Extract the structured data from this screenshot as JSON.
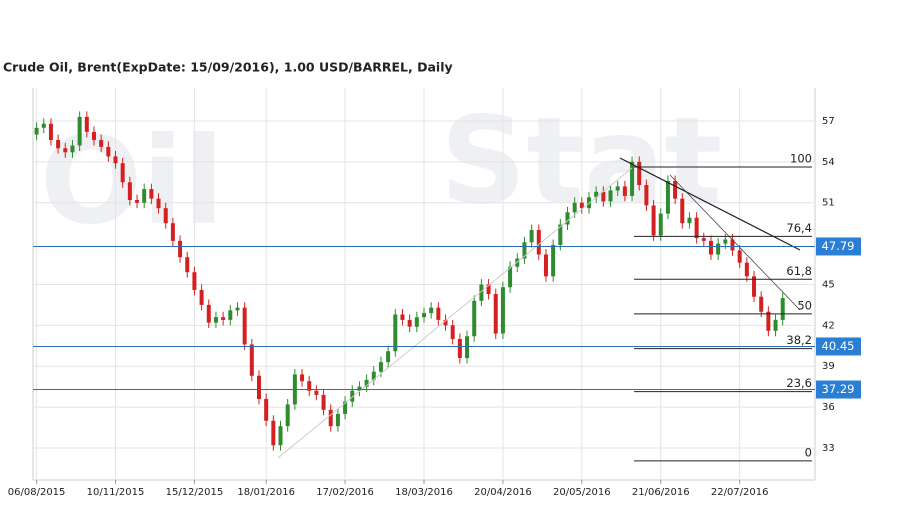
{
  "chart_data": {
    "type": "candlestick",
    "title": "Crude Oil, Brent(ExpDate: 15/09/2016), 1.00 USD/BARREL, Daily",
    "watermark": [
      "Oil",
      "Stat"
    ],
    "up_color": "#2e8b2e",
    "down_color": "#d42020",
    "grid": true,
    "ylim": [
      30.65,
      59.42
    ],
    "yticks": [
      33,
      36,
      39,
      42,
      45,
      51,
      54,
      57
    ],
    "xlim": [
      -0.5,
      108.5
    ],
    "xticks": [
      {
        "value": 0,
        "label": "06/08/2015"
      },
      {
        "value": 11,
        "label": "10/11/2015"
      },
      {
        "value": 22,
        "label": "15/12/2015"
      },
      {
        "value": 32,
        "label": "18/01/2016"
      },
      {
        "value": 43,
        "label": "17/02/2016"
      },
      {
        "value": 54,
        "label": "18/03/2016"
      },
      {
        "value": 65,
        "label": "20/04/2016"
      },
      {
        "value": 76,
        "label": "20/05/2016"
      },
      {
        "value": 87,
        "label": "21/06/2016"
      },
      {
        "value": 98,
        "label": "22/07/2016"
      }
    ],
    "hlines": [
      47.79,
      40.45,
      37.29
    ],
    "fib_levels": [
      {
        "value": 53.62,
        "label": "100"
      },
      {
        "value": 48.53,
        "label": "76,4"
      },
      {
        "value": 45.38,
        "label": "61,8"
      },
      {
        "value": 42.84,
        "label": "50"
      },
      {
        "value": 40.29,
        "label": "38,2"
      },
      {
        "value": 37.14,
        "label": "23,6"
      },
      {
        "value": 32.05,
        "label": "0"
      }
    ],
    "open": [
      56.0,
      56.5,
      56.8,
      55.6,
      55.0,
      54.7,
      55.2,
      57.3,
      56.2,
      55.6,
      55.1,
      54.4,
      53.9,
      52.5,
      51.2,
      51.0,
      52.0,
      51.3,
      50.6,
      49.5,
      48.2,
      47.0,
      45.9,
      44.6,
      43.5,
      42.2,
      42.6,
      42.4,
      43.1,
      43.3,
      40.6,
      38.3,
      36.6,
      35.0,
      33.2,
      34.6,
      36.2,
      38.4,
      37.9,
      37.2,
      36.9,
      35.8,
      34.6,
      35.5,
      36.4,
      37.2,
      37.5,
      38.0,
      38.6,
      39.3,
      40.1,
      42.8,
      42.4,
      41.9,
      42.6,
      42.9,
      43.3,
      42.4,
      42.0,
      41.0,
      39.6,
      41.2,
      43.8,
      45.0,
      44.3,
      41.4,
      44.8,
      46.3,
      46.9,
      48.1,
      49.0,
      47.2,
      45.6,
      47.9,
      49.4,
      50.3,
      51.0,
      50.6,
      51.4,
      51.8,
      51.1,
      51.9,
      52.2,
      51.5,
      54.0,
      52.3,
      50.8,
      48.6,
      50.2,
      52.6,
      51.3,
      49.5,
      49.9,
      48.4,
      48.2,
      47.2,
      48.0,
      48.3,
      47.5,
      46.6,
      45.6,
      44.1,
      43.0,
      41.6,
      42.4
    ],
    "high": [
      56.9,
      57.2,
      57.2,
      56.0,
      55.4,
      55.6,
      57.7,
      57.7,
      56.6,
      56.0,
      55.5,
      54.8,
      54.3,
      52.9,
      51.6,
      52.4,
      52.4,
      51.7,
      51.0,
      49.9,
      48.6,
      47.4,
      46.3,
      45.0,
      43.9,
      43.0,
      43.0,
      43.5,
      43.7,
      43.7,
      41.0,
      38.7,
      37.0,
      35.4,
      35.0,
      36.6,
      38.8,
      38.8,
      38.3,
      37.6,
      37.3,
      36.2,
      35.9,
      36.8,
      37.6,
      37.9,
      38.4,
      39.0,
      39.7,
      40.5,
      43.2,
      43.2,
      42.8,
      43.0,
      43.3,
      43.7,
      43.7,
      42.8,
      42.4,
      41.4,
      41.6,
      44.2,
      45.4,
      45.4,
      44.7,
      45.2,
      46.7,
      47.3,
      48.5,
      49.4,
      49.4,
      47.6,
      48.3,
      49.8,
      50.7,
      51.4,
      51.4,
      51.8,
      52.2,
      52.2,
      52.3,
      52.6,
      52.6,
      54.4,
      54.4,
      52.7,
      51.2,
      50.6,
      53.0,
      53.0,
      51.7,
      50.3,
      50.3,
      48.8,
      48.6,
      48.4,
      48.7,
      48.7,
      47.9,
      47.0,
      46.0,
      44.5,
      43.4,
      42.8,
      44.4
    ],
    "low": [
      55.6,
      56.1,
      55.2,
      54.6,
      54.3,
      54.3,
      54.8,
      55.8,
      55.2,
      54.7,
      54.0,
      53.5,
      52.1,
      50.8,
      50.6,
      50.6,
      50.9,
      50.2,
      49.1,
      47.8,
      46.6,
      45.5,
      44.2,
      43.1,
      41.8,
      41.8,
      42.0,
      42.0,
      42.7,
      40.2,
      37.9,
      36.2,
      34.6,
      32.8,
      32.8,
      34.2,
      35.8,
      37.5,
      36.8,
      36.5,
      35.4,
      34.2,
      34.2,
      35.1,
      36.0,
      36.8,
      37.1,
      37.6,
      38.2,
      38.9,
      39.7,
      42.0,
      41.5,
      41.5,
      42.2,
      42.5,
      42.0,
      41.6,
      40.6,
      39.2,
      39.2,
      40.8,
      43.4,
      43.9,
      41.0,
      41.0,
      44.4,
      45.9,
      46.5,
      47.7,
      46.8,
      45.2,
      45.2,
      47.5,
      49.0,
      49.9,
      50.2,
      50.2,
      51.0,
      50.7,
      50.7,
      51.5,
      51.1,
      51.1,
      51.9,
      50.4,
      48.2,
      48.2,
      49.8,
      50.9,
      49.1,
      49.1,
      48.0,
      47.8,
      46.8,
      46.8,
      47.6,
      47.1,
      46.2,
      45.2,
      43.7,
      42.6,
      41.2,
      41.2,
      42.0
    ],
    "close": [
      56.5,
      56.8,
      55.6,
      55.0,
      54.7,
      55.2,
      57.3,
      56.2,
      55.6,
      55.1,
      54.4,
      53.9,
      52.5,
      51.2,
      51.0,
      52.0,
      51.3,
      50.6,
      49.5,
      48.2,
      47.0,
      45.9,
      44.6,
      43.5,
      42.2,
      42.6,
      42.4,
      43.1,
      43.3,
      40.6,
      38.3,
      36.6,
      35.0,
      33.2,
      34.6,
      36.2,
      38.4,
      37.9,
      37.2,
      36.9,
      35.8,
      34.6,
      35.5,
      36.4,
      37.2,
      37.5,
      38.0,
      38.6,
      39.3,
      40.1,
      42.8,
      42.4,
      41.9,
      42.6,
      42.9,
      43.3,
      42.4,
      42.0,
      41.0,
      39.6,
      41.2,
      43.8,
      45.0,
      44.3,
      41.4,
      44.8,
      46.3,
      46.9,
      48.1,
      49.0,
      47.2,
      45.6,
      47.9,
      49.4,
      50.3,
      51.0,
      50.6,
      51.4,
      51.8,
      51.1,
      51.9,
      52.2,
      51.5,
      54.0,
      52.3,
      50.8,
      48.6,
      50.2,
      52.6,
      51.3,
      49.5,
      49.9,
      48.4,
      48.2,
      47.2,
      48.0,
      48.3,
      47.5,
      46.6,
      45.6,
      44.1,
      43.0,
      41.6,
      42.4,
      44.0
    ]
  }
}
